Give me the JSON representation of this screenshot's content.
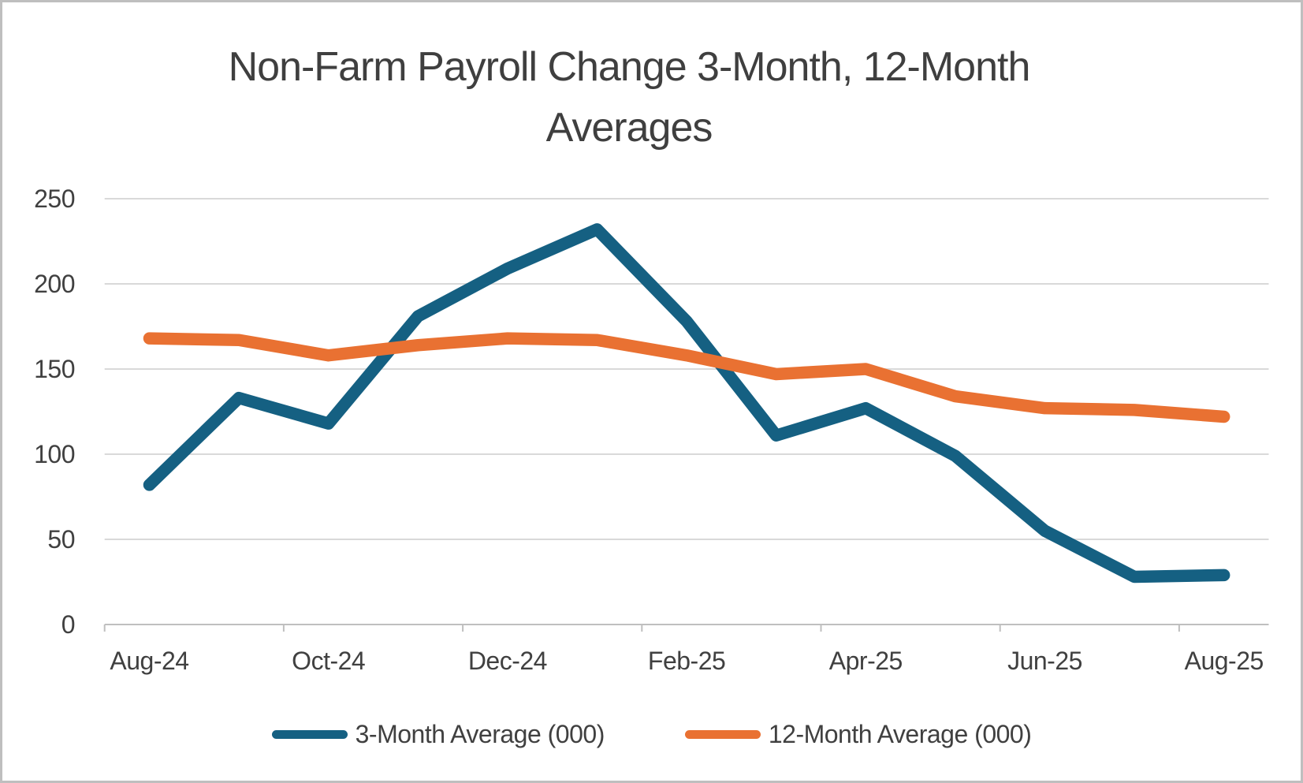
{
  "ui": {
    "title_lines": [
      "Non-Farm Payroll Change 3-Month, 12-Month",
      "Averages"
    ]
  },
  "colors": {
    "background": "#FFFFFF",
    "frame_border": "#BFBFBF",
    "gridline": "#D9D9D9",
    "axis_line": "#BFBFBF",
    "text": "#404040",
    "title_text": "#3F3F3F",
    "series_blue": "#156082",
    "series_orange": "#E97132"
  },
  "chart_data": {
    "type": "line",
    "title": "Non-Farm Payroll Change 3-Month, 12-Month Averages",
    "x": [
      "Aug-24",
      "Sep-24",
      "Oct-24",
      "Nov-24",
      "Dec-24",
      "Jan-25",
      "Feb-25",
      "Mar-25",
      "Apr-25",
      "May-25",
      "Jun-25",
      "Jul-25",
      "Aug-25"
    ],
    "series": [
      {
        "name": "3-Month Average (000)",
        "color": "#156082",
        "values": [
          82,
          133,
          118,
          181,
          209,
          232,
          178,
          111,
          127,
          99,
          55,
          28,
          29
        ]
      },
      {
        "name": "12-Month Average (000)",
        "color": "#E97132",
        "values": [
          168,
          167,
          158,
          164,
          168,
          167,
          158,
          147,
          150,
          134,
          127,
          126,
          122
        ]
      }
    ],
    "ylim": [
      0,
      250
    ],
    "y_ticks": [
      0,
      50,
      100,
      150,
      200,
      250
    ],
    "x_tick_labels": [
      "Aug-24",
      "Oct-24",
      "Dec-24",
      "Feb-25",
      "Apr-25",
      "Jun-25",
      "Aug-25"
    ],
    "x_label_interval": 2,
    "grid": "horizontal",
    "legend_position": "bottom",
    "line_style": "straight, round caps and joins"
  }
}
